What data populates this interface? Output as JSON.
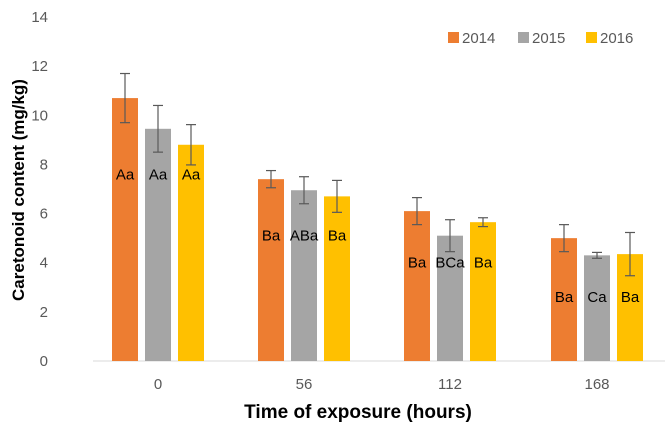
{
  "chart_data": {
    "type": "bar",
    "xlabel": "Time of exposure (hours)",
    "ylabel": "Caretonoid content  (mg/kg)",
    "ylim": [
      0,
      14
    ],
    "yticks": [
      "0",
      "2",
      "4",
      "6",
      "8",
      "10",
      "12",
      "14"
    ],
    "categories": [
      "0",
      "56",
      "112",
      "168"
    ],
    "legend_position": "top-right",
    "error_bars": true,
    "series": [
      {
        "name": "2014",
        "color": "#ED7D31",
        "values": [
          10.7,
          7.4,
          6.1,
          5.0
        ],
        "errors": [
          1.0,
          0.35,
          0.55,
          0.55
        ],
        "labels": [
          "Aa",
          "Ba",
          "Ba",
          "Ba"
        ]
      },
      {
        "name": "2015",
        "color": "#A5A5A5",
        "values": [
          9.45,
          6.95,
          5.1,
          4.3
        ],
        "errors": [
          0.95,
          0.55,
          0.65,
          0.12
        ],
        "labels": [
          "Aa",
          "ABa",
          "BCa",
          "Ca"
        ]
      },
      {
        "name": "2016",
        "color": "#FFC000",
        "values": [
          8.8,
          6.7,
          5.65,
          4.35
        ],
        "errors": [
          0.82,
          0.65,
          0.18,
          0.88
        ],
        "labels": [
          "Aa",
          "Ba",
          "Ba",
          "Ba"
        ]
      }
    ]
  }
}
